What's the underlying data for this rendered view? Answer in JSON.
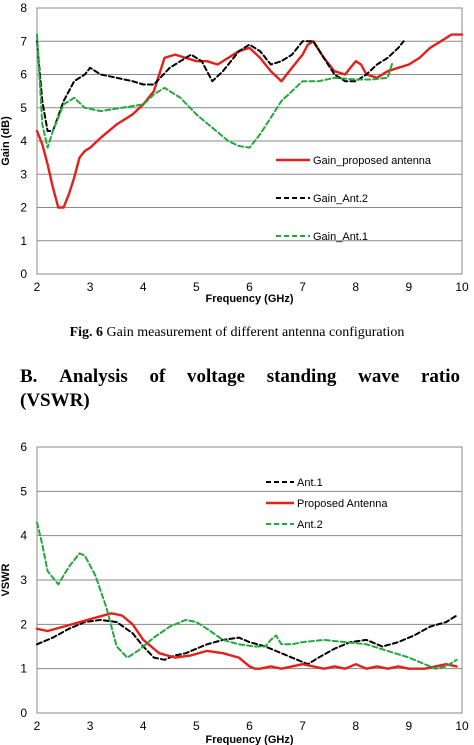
{
  "caption": {
    "label": "Fig. 6",
    "text": "Gain measurement of different antenna configuration"
  },
  "section": {
    "line1_words": [
      "B.",
      "Analysis",
      "of",
      "voltage",
      "standing",
      "wave",
      "ratio"
    ],
    "line2": "(VSWR)"
  },
  "chart_data": [
    {
      "type": "line",
      "title": "",
      "xlabel": "Frequency (GHz)",
      "ylabel": "Gain (dB)",
      "xlim": [
        2,
        10
      ],
      "ylim": [
        0,
        8
      ],
      "xticks": [
        2,
        3,
        4,
        5,
        6,
        7,
        8,
        9,
        10
      ],
      "yticks": [
        0,
        1,
        2,
        3,
        4,
        5,
        6,
        7,
        8
      ],
      "grid": "horizontal",
      "legend_position": "right-middle",
      "series": [
        {
          "name": "Gain_proposed antenna",
          "color": "#e3201b",
          "dash": "solid",
          "x": [
            2.0,
            2.1,
            2.2,
            2.3,
            2.4,
            2.5,
            2.6,
            2.7,
            2.8,
            2.9,
            3.0,
            3.2,
            3.5,
            3.8,
            4.0,
            4.2,
            4.4,
            4.6,
            4.8,
            5.0,
            5.2,
            5.4,
            5.6,
            5.8,
            6.0,
            6.2,
            6.4,
            6.6,
            6.8,
            7.0,
            7.1,
            7.2,
            7.4,
            7.6,
            7.8,
            7.9,
            8.0,
            8.1,
            8.2,
            8.4,
            8.6,
            8.8,
            9.0,
            9.2,
            9.4,
            9.6,
            9.8,
            10.0
          ],
          "values": [
            4.3,
            3.9,
            3.3,
            2.6,
            2.0,
            2.0,
            2.4,
            2.9,
            3.5,
            3.7,
            3.8,
            4.1,
            4.5,
            4.8,
            5.1,
            5.5,
            6.5,
            6.6,
            6.5,
            6.4,
            6.4,
            6.3,
            6.5,
            6.7,
            6.8,
            6.5,
            6.1,
            5.8,
            6.2,
            6.6,
            6.9,
            7.0,
            6.5,
            6.1,
            6.0,
            6.2,
            6.4,
            6.3,
            6.0,
            5.9,
            6.1,
            6.2,
            6.3,
            6.5,
            6.8,
            7.0,
            7.2,
            7.2
          ]
        },
        {
          "name": "Gain_Ant.2",
          "color": "#000000",
          "dash": "dashed",
          "x": [
            2.0,
            2.1,
            2.2,
            2.3,
            2.5,
            2.7,
            2.9,
            3.0,
            3.1,
            3.2,
            3.5,
            3.8,
            4.0,
            4.2,
            4.5,
            4.7,
            4.9,
            5.0,
            5.1,
            5.2,
            5.3,
            5.5,
            5.7,
            5.8,
            6.0,
            6.2,
            6.4,
            6.6,
            6.8,
            7.0,
            7.2,
            7.4,
            7.6,
            7.8,
            8.0,
            8.2,
            8.4,
            8.6,
            8.8,
            8.9
          ],
          "values": [
            7.0,
            5.2,
            4.3,
            4.3,
            5.2,
            5.8,
            6.0,
            6.2,
            6.1,
            6.0,
            5.9,
            5.8,
            5.7,
            5.7,
            6.2,
            6.4,
            6.6,
            6.5,
            6.4,
            6.1,
            5.8,
            6.1,
            6.5,
            6.7,
            6.9,
            6.7,
            6.3,
            6.4,
            6.6,
            7.0,
            7.0,
            6.5,
            6.0,
            5.8,
            5.8,
            6.0,
            6.3,
            6.5,
            6.8,
            7.0
          ]
        },
        {
          "name": "Gain_Ant.1",
          "color": "#22a83d",
          "dash": "dashed",
          "x": [
            2.0,
            2.1,
            2.2,
            2.3,
            2.4,
            2.5,
            2.7,
            2.9,
            3.2,
            3.6,
            4.0,
            4.2,
            4.4,
            4.7,
            5.0,
            5.3,
            5.6,
            5.8,
            6.0,
            6.2,
            6.4,
            6.6,
            6.8,
            7.0,
            7.3,
            7.6,
            8.0,
            8.3,
            8.6,
            8.7
          ],
          "values": [
            7.2,
            4.5,
            3.8,
            4.3,
            4.7,
            5.1,
            5.3,
            5.0,
            4.9,
            5.0,
            5.1,
            5.4,
            5.6,
            5.3,
            4.8,
            4.4,
            4.0,
            3.85,
            3.8,
            4.2,
            4.7,
            5.2,
            5.5,
            5.8,
            5.8,
            5.9,
            5.85,
            5.85,
            5.9,
            6.4
          ]
        }
      ]
    },
    {
      "type": "line",
      "title": "",
      "xlabel": "Frequency (GHz)",
      "ylabel": "VSWR",
      "xlim": [
        2,
        10
      ],
      "ylim": [
        0,
        6
      ],
      "xticks": [
        2,
        3,
        4,
        5,
        6,
        7,
        8,
        9,
        10
      ],
      "yticks": [
        0,
        1,
        2,
        3,
        4,
        5,
        6
      ],
      "grid": "horizontal",
      "legend_position": "top-right",
      "series": [
        {
          "name": "Ant.1",
          "color": "#000000",
          "dash": "dashed",
          "x": [
            2.0,
            2.3,
            2.6,
            2.9,
            3.2,
            3.5,
            3.8,
            4.0,
            4.2,
            4.4,
            4.6,
            4.8,
            5.0,
            5.2,
            5.5,
            5.8,
            6.0,
            6.3,
            6.6,
            6.9,
            7.1,
            7.3,
            7.6,
            7.9,
            8.2,
            8.5,
            8.8,
            9.1,
            9.4,
            9.7,
            9.9
          ],
          "values": [
            1.55,
            1.7,
            1.9,
            2.05,
            2.1,
            2.05,
            1.8,
            1.5,
            1.25,
            1.2,
            1.3,
            1.35,
            1.45,
            1.55,
            1.65,
            1.7,
            1.6,
            1.5,
            1.35,
            1.2,
            1.1,
            1.25,
            1.45,
            1.6,
            1.65,
            1.5,
            1.6,
            1.75,
            1.95,
            2.05,
            2.2
          ]
        },
        {
          "name": "Proposed Antenna",
          "color": "#e3201b",
          "dash": "solid",
          "x": [
            2.0,
            2.2,
            2.5,
            2.8,
            3.1,
            3.4,
            3.6,
            3.8,
            4.0,
            4.3,
            4.6,
            4.9,
            5.2,
            5.5,
            5.8,
            6.0,
            6.1,
            6.2,
            6.4,
            6.6,
            6.8,
            7.0,
            7.2,
            7.4,
            7.6,
            7.8,
            8.0,
            8.2,
            8.4,
            8.6,
            8.8,
            9.0,
            9.3,
            9.5,
            9.7,
            9.9
          ],
          "values": [
            1.9,
            1.85,
            1.95,
            2.05,
            2.15,
            2.25,
            2.2,
            2.0,
            1.65,
            1.35,
            1.25,
            1.3,
            1.4,
            1.35,
            1.25,
            1.05,
            1.0,
            1.0,
            1.05,
            1.0,
            1.05,
            1.1,
            1.05,
            1.0,
            1.05,
            1.0,
            1.1,
            1.0,
            1.05,
            1.0,
            1.05,
            1.0,
            1.0,
            1.05,
            1.1,
            1.05
          ]
        },
        {
          "name": "Ant.2",
          "color": "#22a83d",
          "dash": "dashed",
          "x": [
            2.0,
            2.1,
            2.2,
            2.4,
            2.6,
            2.8,
            2.9,
            3.1,
            3.3,
            3.5,
            3.7,
            3.9,
            4.2,
            4.5,
            4.8,
            5.0,
            5.2,
            5.5,
            5.8,
            6.1,
            6.3,
            6.4,
            6.5,
            6.6,
            6.8,
            7.0,
            7.4,
            7.8,
            8.2,
            8.6,
            9.0,
            9.3,
            9.5,
            9.7,
            9.9
          ],
          "values": [
            4.3,
            3.8,
            3.2,
            2.9,
            3.3,
            3.6,
            3.55,
            3.1,
            2.4,
            1.5,
            1.25,
            1.4,
            1.7,
            1.95,
            2.1,
            2.05,
            1.9,
            1.65,
            1.55,
            1.5,
            1.5,
            1.65,
            1.75,
            1.55,
            1.55,
            1.6,
            1.65,
            1.6,
            1.55,
            1.4,
            1.25,
            1.1,
            1.0,
            1.05,
            1.2
          ]
        }
      ]
    }
  ]
}
